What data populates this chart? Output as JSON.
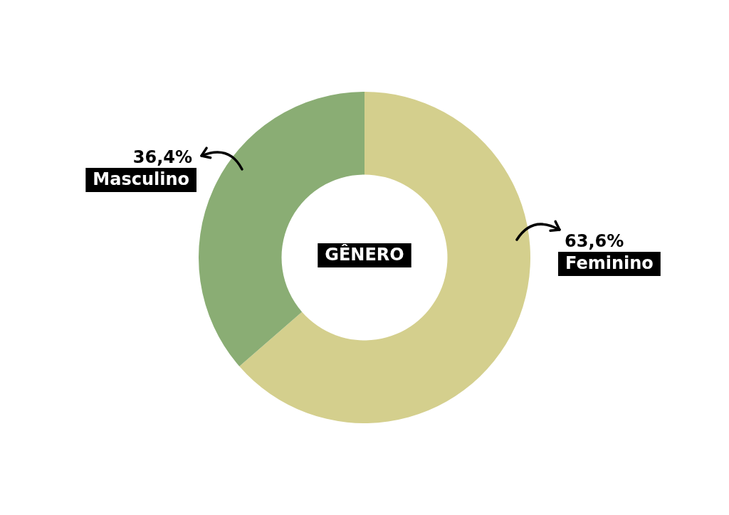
{
  "chart_data": {
    "type": "donut",
    "title": "GÊNERO",
    "categories": [
      "Feminino",
      "Masculino"
    ],
    "values": [
      63.6,
      36.4
    ],
    "colors": [
      "#d4cf8d",
      "#8aad74"
    ],
    "value_labels": [
      "63,6%",
      "36,4%"
    ]
  }
}
